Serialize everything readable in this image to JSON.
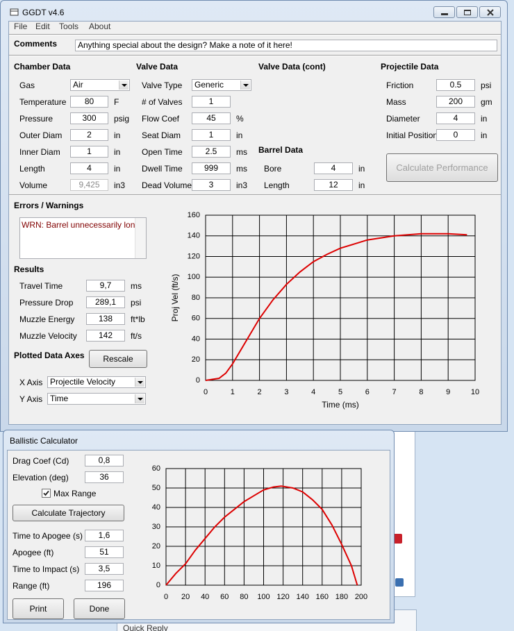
{
  "window": {
    "title": "GGDT v4.6"
  },
  "menu": [
    "File",
    "Edit",
    "Tools",
    "About"
  ],
  "comments": {
    "label": "Comments",
    "value": "Anything special about the design?  Make a note of it here!"
  },
  "chamber": {
    "title": "Chamber Data",
    "fields": [
      {
        "label": "Gas",
        "value": "Air"
      },
      {
        "label": "Temperature",
        "value": "80",
        "unit": "F"
      },
      {
        "label": "Pressure",
        "value": "300",
        "unit": "psig"
      },
      {
        "label": "Outer Diam",
        "value": "2",
        "unit": "in"
      },
      {
        "label": "Inner Diam",
        "value": "1",
        "unit": "in"
      },
      {
        "label": "Length",
        "value": "4",
        "unit": "in"
      },
      {
        "label": "Volume",
        "value": "9,425",
        "unit": "in3"
      }
    ]
  },
  "valve": {
    "title": "Valve Data",
    "fields": [
      {
        "label": "Valve Type",
        "value": "Generic"
      },
      {
        "label": "# of Valves",
        "value": "1"
      },
      {
        "label": "Flow Coef",
        "value": "45",
        "unit": "%"
      },
      {
        "label": "Seat Diam",
        "value": "1",
        "unit": "in"
      },
      {
        "label": "Open Time",
        "value": "2.5",
        "unit": "ms"
      },
      {
        "label": "Dwell Time",
        "value": "999",
        "unit": "ms"
      },
      {
        "label": "Dead Volume",
        "value": "3",
        "unit": "in3"
      }
    ]
  },
  "valve_cont": {
    "title": "Valve Data (cont)"
  },
  "barrel": {
    "title": "Barrel Data",
    "fields": [
      {
        "label": "Bore",
        "value": "4",
        "unit": "in"
      },
      {
        "label": "Length",
        "value": "12",
        "unit": "in"
      }
    ]
  },
  "projectile": {
    "title": "Projectile Data",
    "fields": [
      {
        "label": "Friction",
        "value": "0.5",
        "unit": "psi"
      },
      {
        "label": "Mass",
        "value": "200",
        "unit": "gm"
      },
      {
        "label": "Diameter",
        "value": "4",
        "unit": "in"
      },
      {
        "label": "Initial Position",
        "value": "0",
        "unit": "in"
      }
    ]
  },
  "calculate_button": "Calculate Performance",
  "errors": {
    "title": "Errors / Warnings",
    "text": "WRN: Barrel unnecessarily long"
  },
  "results": {
    "title": "Results",
    "fields": [
      {
        "label": "Travel Time",
        "value": "9,7",
        "unit": "ms"
      },
      {
        "label": "Pressure Drop",
        "value": "289,1",
        "unit": "psi"
      },
      {
        "label": "Muzzle Energy",
        "value": "138",
        "unit": "ft*lb"
      },
      {
        "label": "Muzzle Velocity",
        "value": "142",
        "unit": "ft/s"
      }
    ]
  },
  "axes": {
    "title": "Plotted Data Axes",
    "button": "Rescale",
    "fields": [
      {
        "label": "X Axis",
        "value": "Projectile Velocity"
      },
      {
        "label": "Y Axis",
        "value": "Time"
      }
    ]
  },
  "ballistic": {
    "title": "Ballistic Calculator",
    "inputs": {
      "fields": [
        {
          "label": "Drag Coef (Cd)",
          "value": "0,8"
        },
        {
          "label": "Elevation (deg)",
          "value": "36"
        }
      ]
    },
    "checkbox": {
      "label": "Max Range",
      "checked": true
    },
    "button": "Calculate Trajectory",
    "outputs": {
      "fields": [
        {
          "label": "Time to Apogee (s)",
          "value": "1,6"
        },
        {
          "label": "Apogee (ft)",
          "value": "51"
        },
        {
          "label": "Time to Impact (s)",
          "value": "3,5"
        },
        {
          "label": "Range (ft)",
          "value": "196"
        }
      ]
    },
    "print": "Print",
    "done": "Done"
  },
  "background": {
    "text": "Quick Reply"
  },
  "chart_data": [
    {
      "type": "line",
      "xlabel": "Time (ms)",
      "ylabel": "Proj Vel (ft/s)",
      "x": [
        0,
        0.5,
        0.75,
        1,
        1.5,
        2,
        2.5,
        3,
        3.5,
        4,
        4.5,
        5,
        5.5,
        6,
        6.5,
        7,
        7.5,
        8,
        8.5,
        9,
        9.7
      ],
      "values": [
        0,
        2,
        7,
        16,
        38,
        60,
        78,
        93,
        105,
        115,
        122,
        128,
        132,
        136,
        138,
        140,
        141,
        142,
        142,
        142,
        141
      ],
      "color": "#dd0000",
      "grid": true,
      "xlim": [
        0,
        10
      ],
      "xticks": [
        0,
        1,
        2,
        3,
        4,
        5,
        6,
        7,
        8,
        9,
        10
      ],
      "ylim": [
        0,
        160
      ],
      "yticks": [
        0,
        20,
        40,
        60,
        80,
        100,
        120,
        140,
        160
      ]
    },
    {
      "type": "line",
      "x": [
        0,
        10,
        20,
        30,
        40,
        50,
        60,
        70,
        80,
        90,
        100,
        110,
        118,
        130,
        140,
        150,
        160,
        170,
        180,
        190,
        196
      ],
      "values": [
        0,
        6,
        11,
        18,
        24,
        30,
        35,
        39,
        43,
        46,
        49,
        50.5,
        51,
        50,
        48,
        44,
        39,
        31,
        21,
        10,
        0
      ],
      "color": "#dd0000",
      "grid": true,
      "xlim": [
        0,
        200
      ],
      "xticks": [
        0,
        20,
        40,
        60,
        80,
        100,
        120,
        140,
        160,
        180,
        200
      ],
      "ylim": [
        0,
        60
      ],
      "yticks": [
        0,
        10,
        20,
        30,
        40,
        50,
        60
      ]
    }
  ]
}
